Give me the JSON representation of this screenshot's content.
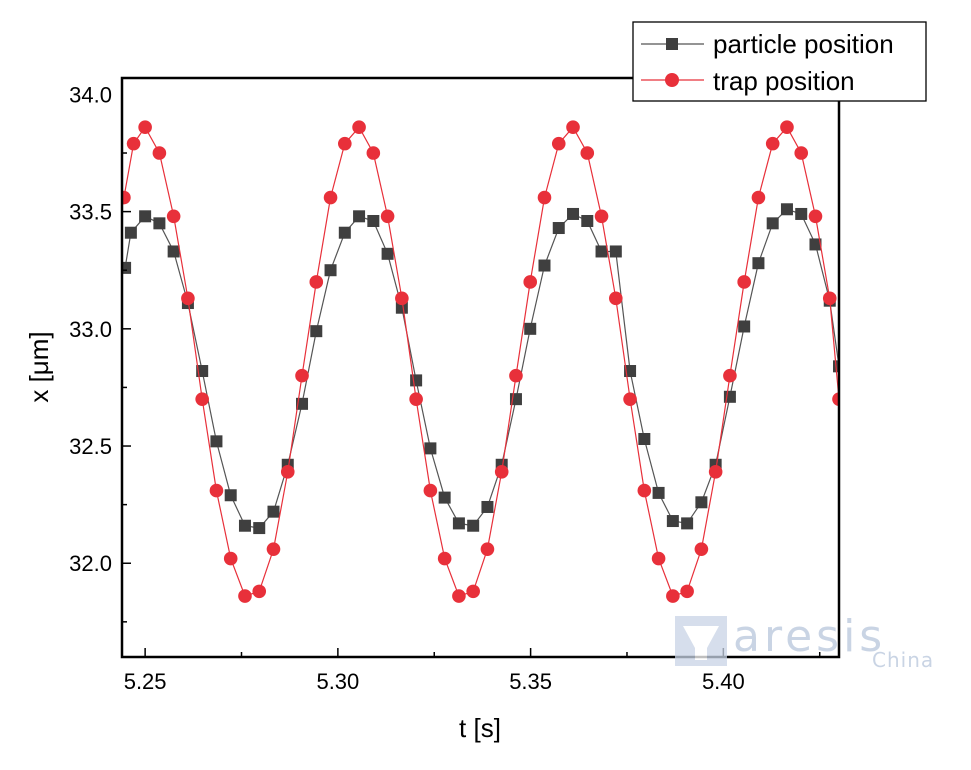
{
  "chart_data": {
    "type": "scatter",
    "xlabel": "t [s]",
    "ylabel": "x [μm]",
    "xlim": [
      5.244,
      5.43
    ],
    "ylim": [
      31.6,
      34.07
    ],
    "x_ticks": [
      {
        "value": 5.25,
        "label": "5.25"
      },
      {
        "value": 5.3,
        "label": "5.30"
      },
      {
        "value": 5.35,
        "label": "5.35"
      },
      {
        "value": 5.4,
        "label": "5.40"
      }
    ],
    "y_ticks": [
      {
        "value": 32.0,
        "label": "32.0"
      },
      {
        "value": 32.5,
        "label": "32.5"
      },
      {
        "value": 33.0,
        "label": "33.0"
      },
      {
        "value": 33.5,
        "label": "33.5"
      },
      {
        "value": 34.0,
        "label": "34.0"
      }
    ],
    "legend_position": "top-right, outside plot",
    "grid": false,
    "series": [
      {
        "name": "particle position",
        "marker": "square",
        "color": "#3f3f3f",
        "line_color": "#555555",
        "x": [
          5.2448,
          5.2463,
          5.25,
          5.2537,
          5.2574,
          5.2611,
          5.2648,
          5.2685,
          5.2722,
          5.2759,
          5.2796,
          5.2833,
          5.287,
          5.2907,
          5.2944,
          5.2981,
          5.3018,
          5.3055,
          5.3092,
          5.3129,
          5.3166,
          5.3203,
          5.324,
          5.3277,
          5.3314,
          5.3351,
          5.3388,
          5.3425,
          5.3462,
          5.3499,
          5.3536,
          5.3573,
          5.361,
          5.3647,
          5.3684,
          5.3721,
          5.3758,
          5.3795,
          5.3832,
          5.3869,
          5.3906,
          5.3943,
          5.398,
          5.4017,
          5.4054,
          5.4091,
          5.4128,
          5.4165,
          5.4202,
          5.4239,
          5.4276,
          5.43
        ],
        "values": [
          33.26,
          33.41,
          33.48,
          33.45,
          33.33,
          33.11,
          32.82,
          32.52,
          32.29,
          32.16,
          32.15,
          32.22,
          32.42,
          32.68,
          32.99,
          33.25,
          33.41,
          33.48,
          33.46,
          33.32,
          33.09,
          32.78,
          32.49,
          32.28,
          32.17,
          32.16,
          32.24,
          32.42,
          32.7,
          33.0,
          33.27,
          33.43,
          33.49,
          33.46,
          33.33,
          33.33,
          32.82,
          32.53,
          32.3,
          32.18,
          32.17,
          32.26,
          32.42,
          32.71,
          33.01,
          33.28,
          33.45,
          33.51,
          33.49,
          33.36,
          33.12,
          32.84
        ]
      },
      {
        "name": "trap position",
        "marker": "circle",
        "color": "#e8303a",
        "line_color": "#e8303a",
        "x": [
          5.2445,
          5.247,
          5.25,
          5.2537,
          5.2574,
          5.2611,
          5.2648,
          5.2685,
          5.2722,
          5.2759,
          5.2796,
          5.2833,
          5.287,
          5.2907,
          5.2944,
          5.2981,
          5.3018,
          5.3055,
          5.3092,
          5.3129,
          5.3166,
          5.3203,
          5.324,
          5.3277,
          5.3314,
          5.3351,
          5.3388,
          5.3425,
          5.3462,
          5.3499,
          5.3536,
          5.3573,
          5.361,
          5.3647,
          5.3684,
          5.3721,
          5.3758,
          5.3795,
          5.3832,
          5.3869,
          5.3906,
          5.3943,
          5.398,
          5.4017,
          5.4054,
          5.4091,
          5.4128,
          5.4165,
          5.4202,
          5.4239,
          5.4276,
          5.43
        ],
        "values": [
          33.56,
          33.79,
          33.86,
          33.75,
          33.48,
          33.13,
          32.7,
          32.31,
          32.02,
          31.86,
          31.88,
          32.06,
          32.39,
          32.8,
          33.2,
          33.56,
          33.79,
          33.86,
          33.75,
          33.48,
          33.13,
          32.7,
          32.31,
          32.02,
          31.86,
          31.88,
          32.06,
          32.39,
          32.8,
          33.2,
          33.56,
          33.79,
          33.86,
          33.75,
          33.48,
          33.13,
          32.7,
          32.31,
          32.02,
          31.86,
          31.88,
          32.06,
          32.39,
          32.8,
          33.2,
          33.56,
          33.79,
          33.86,
          33.75,
          33.48,
          33.13,
          32.7
        ]
      }
    ]
  },
  "watermark": {
    "brand": "aresis",
    "sub": "China",
    "color": "#b8c6dc"
  }
}
